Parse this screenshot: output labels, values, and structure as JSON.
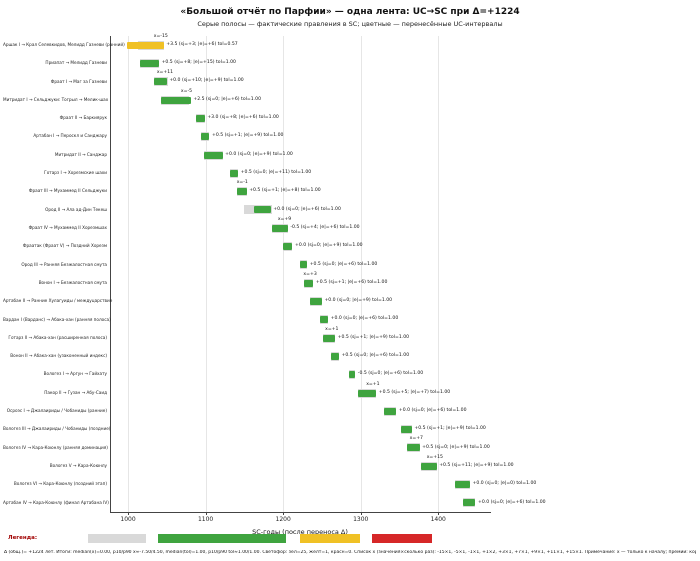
{
  "title": "«Большой отчёт по Парфии» — одна лента: UC→SC при Δ=+1224",
  "subtitle": "Серые полосы — фактические правления в SC; цветные — перенесённые UC-интервалы",
  "footnote": "Δ (общ.)= +1224 лет.   Итоги: median(x)=0.00, p10/p90 x≈-7.50/4.50, median(tol)=1.00, p10/p90 tol≈1.00/1.00.   Светофор: зел=25, жёлт=1, красн=0.   Список x (значения×сколько раз): -15×1, -5×1, -1×1, +1×2, +3×1, +7×1, +9×1, +11×1, +15×1.   Примечание: x — только к началу; премии: коронации, регентства, начало года.",
  "legend": {
    "label": "Легенда:",
    "swatches": [
      {
        "name": "sc-band-swatch",
        "color": "#d9d9d9"
      },
      {
        "name": "green-ok-swatch",
        "color": "#3fa43f"
      },
      {
        "name": "yellow-warn-swatch",
        "color": "#f0c125"
      },
      {
        "name": "red-bad-swatch",
        "color": "#d62728"
      }
    ]
  },
  "chart_data": {
    "type": "bar",
    "title": "«Большой отчёт по Парфии» — одна лента: UC→SC при Δ=+1224",
    "xlabel": "SC-годы (после переноса Δ)",
    "xlim": [
      978,
      1468
    ],
    "xticks": [
      1000,
      1100,
      1200,
      1300,
      1400
    ],
    "grid": "vertical",
    "colors": {
      "green": "#3fa43f",
      "yellow": "#f0c125",
      "red": "#d62728",
      "sc": "#d9d9d9"
    },
    "rows": [
      {
        "label": "Аршак I → Крал Селевкидов, Мелидд Газневи (ранний)",
        "sc": [
          1013,
          1046
        ],
        "uc": [
          998,
          1046
        ],
        "color": "yellow",
        "x": "x=-15",
        "ann": "+3.5 (sj=+3; |e|=+6) tol=0.57"
      },
      {
        "label": "Приапат → Мелидд Газневи",
        "sc": [
          1016,
          1040
        ],
        "uc": [
          1016,
          1040
        ],
        "color": "green",
        "x": null,
        "ann": "+0.5 (sj=+8; |e|=+15) tol=1.00"
      },
      {
        "label": "Фраат I → Маг за Газневи",
        "sc": [
          1033,
          1051
        ],
        "uc": [
          1033,
          1050
        ],
        "color": "green",
        "x": "x=+11",
        "ann": "+0.0 (sj=+10; |e|=+9) tol=1.00"
      },
      {
        "label": "Митридат I → Сельджуки: Тогрыл → Мелик-шах",
        "sc": [
          1042,
          1078
        ],
        "uc": [
          1042,
          1081
        ],
        "color": "green",
        "x": "x=-5",
        "ann": "+2.5 (sj=0; |e|=+6) tol=1.00"
      },
      {
        "label": "Фраат II → Баркиярук",
        "sc": [
          1087,
          1099
        ],
        "uc": [
          1087,
          1099
        ],
        "color": "green",
        "x": null,
        "ann": "+3.0 (sj=+8; |e|=+6) tol=1.00"
      },
      {
        "label": "Артабан I → Пероскл и Санджару",
        "sc": [
          1094,
          1105
        ],
        "uc": [
          1094,
          1105
        ],
        "color": "green",
        "x": null,
        "ann": "+0.5 (sj=+1; |e|=+9) tol=1.00"
      },
      {
        "label": "Митридат II → Санджар",
        "sc": [
          1098,
          1122
        ],
        "uc": [
          1098,
          1122
        ],
        "color": "green",
        "x": null,
        "ann": "+0.0 (sj=0; |e|=+9) tol=1.00"
      },
      {
        "label": "Готарз I → Хорезмские шахи",
        "sc": [
          1131,
          1142
        ],
        "uc": [
          1131,
          1142
        ],
        "color": "green",
        "x": null,
        "ann": "+0.5 (sj=0; |e|=+11) tol=1.00"
      },
      {
        "label": "Фраат III → Мухаммед II Сельджуки",
        "sc": [
          1141,
          1153
        ],
        "uc": [
          1140,
          1153
        ],
        "color": "green",
        "x": "x=-1",
        "ann": "+0.5 (sj=+1; |e|=+8) tol=1.00"
      },
      {
        "label": "Ород II → Ала ад-Дин Текеш",
        "sc": [
          1150,
          1186
        ],
        "uc": [
          1163,
          1184
        ],
        "color": "green",
        "x": null,
        "ann": "+0.0 (sj=0; |e|=+6) tol=1.00"
      },
      {
        "label": "Фраат IV → Мухаммед II Хорезмшах",
        "sc": [
          1186,
          1206
        ],
        "uc": [
          1186,
          1206
        ],
        "color": "green",
        "x": "x=+9",
        "ann": "-0.5 (sj=+4; |e|=+6) tol=1.00"
      },
      {
        "label": "Фраатак (Фраат V) → Поздний Хорезм",
        "sc": [
          1200,
          1212
        ],
        "uc": [
          1200,
          1212
        ],
        "color": "green",
        "x": null,
        "ann": "+0.0 (sj=0; |e|=+9) tol=1.00"
      },
      {
        "label": "Ород III → Ранняя Безжалостная смута",
        "sc": [
          1222,
          1231
        ],
        "uc": [
          1222,
          1231
        ],
        "color": "green",
        "x": null,
        "ann": "+0.5 (sj=0; |e|=+6) tol=1.00"
      },
      {
        "label": "Вонон I → Безжалостная смута",
        "sc": [
          1227,
          1239
        ],
        "uc": [
          1227,
          1239
        ],
        "color": "green",
        "x": "x=+3",
        "ann": "+0.5 (sj=+1; |e|=+6) tol=1.00"
      },
      {
        "label": "Артабан II → Ранние Хулагуиды / междуцарствие",
        "sc": [
          1234,
          1250
        ],
        "uc": [
          1234,
          1250
        ],
        "color": "green",
        "x": null,
        "ann": "+0.0 (sj=0; |e|=+9) tol=1.00"
      },
      {
        "label": "Вардан I (Варданс) → Абака-хан (ранняя полоса)",
        "sc": [
          1247,
          1258
        ],
        "uc": [
          1247,
          1258
        ],
        "color": "green",
        "x": null,
        "ann": "+0.0 (sj=0; |e|=+6) tol=1.00"
      },
      {
        "label": "Готарз II → Абака-хан (расширенная полоса)",
        "sc": [
          1252,
          1267
        ],
        "uc": [
          1252,
          1267
        ],
        "color": "green",
        "x": "x=+1",
        "ann": "+0.5 (sj=+1; |e|=+9) tol=1.00"
      },
      {
        "label": "Вонон II → Абака-хан (узаконенный индекс)",
        "sc": [
          1262,
          1272
        ],
        "uc": [
          1262,
          1272
        ],
        "color": "green",
        "x": null,
        "ann": "+0.5 (sj=0; |e|=+6) tol=1.00"
      },
      {
        "label": "Вологез I → Аргун → Гайхату",
        "sc": [
          1285,
          1293
        ],
        "uc": [
          1285,
          1293
        ],
        "color": "green",
        "x": null,
        "ann": "-0.5 (sj=0; |e|=+6) tol=1.00"
      },
      {
        "label": "Пакор II → Гузан → Абу-Саид",
        "sc": [
          1297,
          1320
        ],
        "uc": [
          1297,
          1320
        ],
        "color": "green",
        "x": "x=+1",
        "ann": "+0.5 (sj=+5; |e|=+7) tol=1.00"
      },
      {
        "label": "Осроэс I → Джалаириды / Чобаниды (ранние)",
        "sc": [
          1330,
          1346
        ],
        "uc": [
          1330,
          1346
        ],
        "color": "green",
        "x": null,
        "ann": "+0.0 (sj=0; |e|=+6) tol=1.00"
      },
      {
        "label": "Вологез III → Джалаириды / Чобаниды (поздние)",
        "sc": [
          1352,
          1366
        ],
        "uc": [
          1352,
          1366
        ],
        "color": "green",
        "x": null,
        "ann": "+0.5 (sj=+1; |e|=+9) tol=1.00"
      },
      {
        "label": "Вологез IV → Кара-Коюнлу (ранняя доминация)",
        "sc": [
          1360,
          1376
        ],
        "uc": [
          1360,
          1376
        ],
        "color": "green",
        "x": "x=+7",
        "ann": "+0.5 (sj=0; |e|=+9) tol=1.00"
      },
      {
        "label": "Вологез V → Кара-Коюнлу",
        "sc": [
          1378,
          1398
        ],
        "uc": [
          1378,
          1398
        ],
        "color": "green",
        "x": "x=+15",
        "ann": "+0.5 (sj=+11; |e|=+9) tol=1.00"
      },
      {
        "label": "Вологез VI → Кара-Коюнлу (поздний этап)",
        "sc": [
          1422,
          1441
        ],
        "uc": [
          1422,
          1441
        ],
        "color": "green",
        "x": null,
        "ann": "+0.0 (sj=0; |e|=0) tol=1.00"
      },
      {
        "label": "Артабан IV → Кара-Коюнлу (финал Артабана IV)",
        "sc": [
          1432,
          1448
        ],
        "uc": [
          1432,
          1448
        ],
        "color": "green",
        "x": null,
        "ann": "+0.0 (sj=0; |e|=+6) tol=1.00"
      }
    ]
  }
}
